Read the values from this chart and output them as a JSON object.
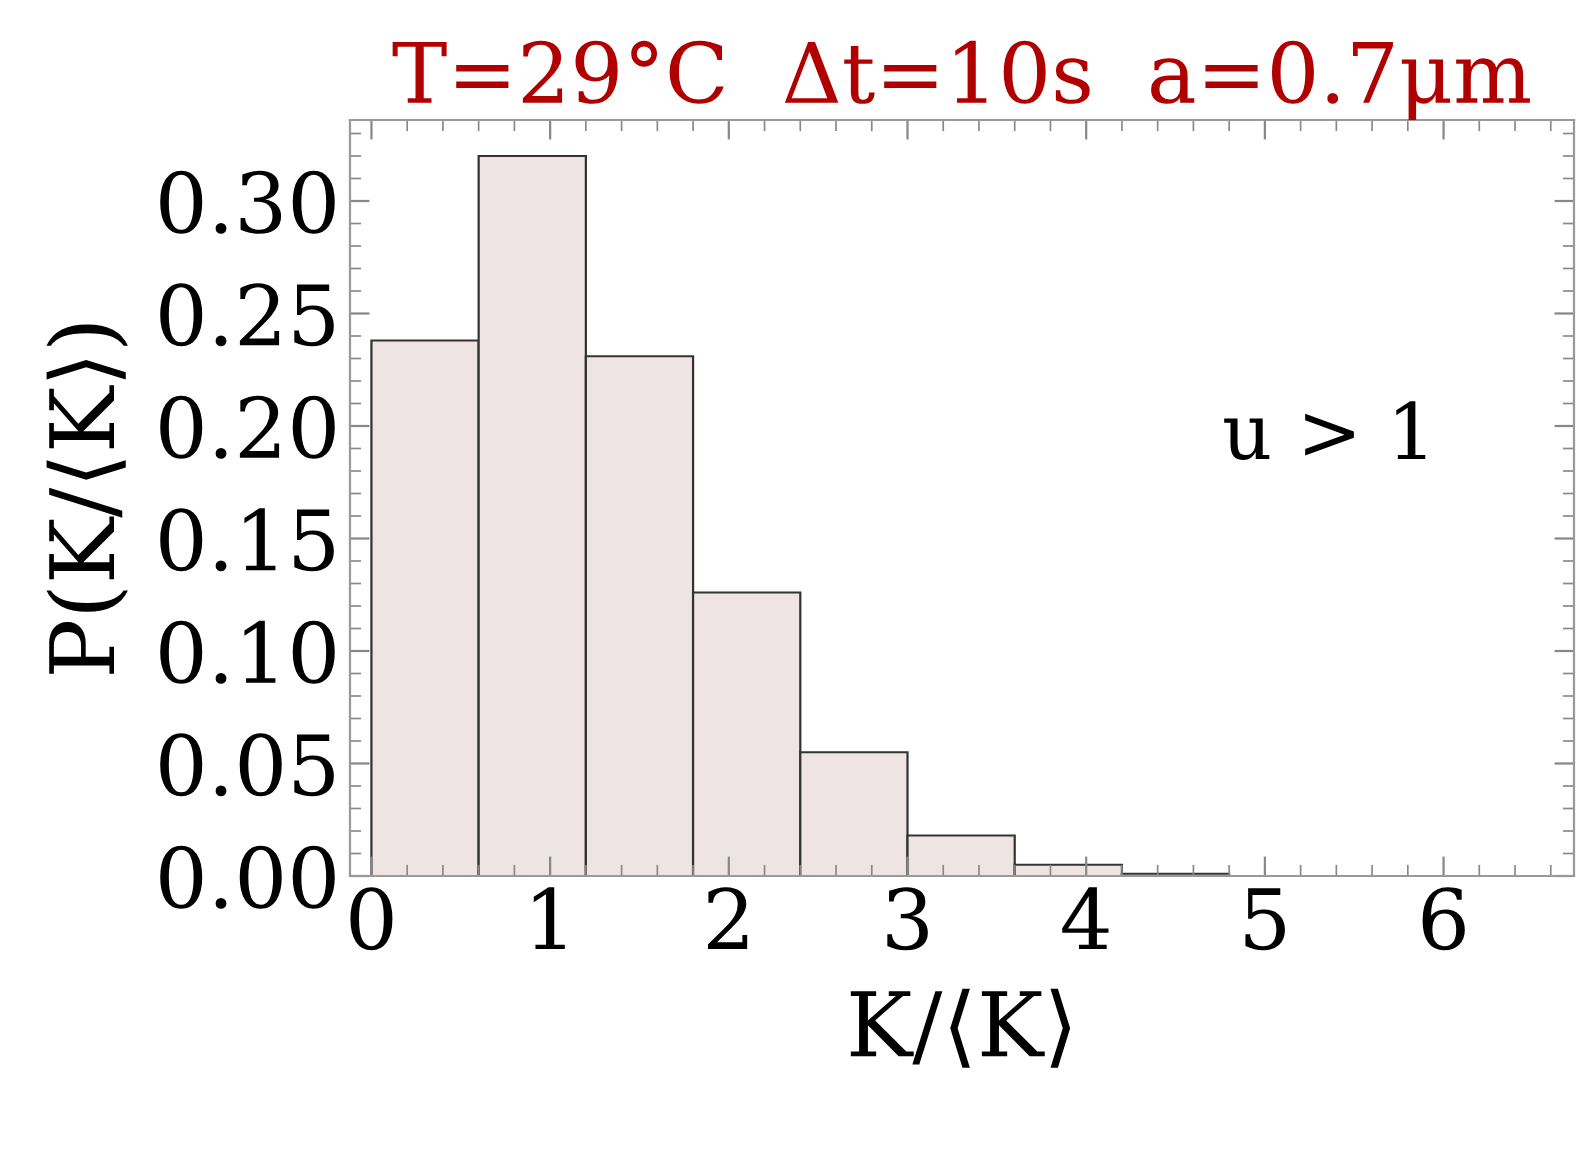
{
  "chart_data": {
    "type": "histogram",
    "title": "T=29°C  Δt=10s  a=0.7μm",
    "xlabel": "K/⟨K⟩",
    "ylabel": "P(K/⟨K⟩)",
    "annotations": [
      "u > 1"
    ],
    "bins": [
      0,
      0.6,
      1.2,
      1.8,
      2.4,
      3.0,
      3.6,
      4.2,
      4.8
    ],
    "values": [
      0.238,
      0.32,
      0.231,
      0.126,
      0.055,
      0.018,
      0.005,
      0.001
    ],
    "color": "#efe4e4",
    "xlim": [
      -0.12,
      6.73
    ],
    "ylim": [
      0,
      0.336
    ],
    "xticks": [
      0,
      1,
      2,
      3,
      4,
      5,
      6
    ],
    "yticks": [
      {
        "value": 0,
        "label": "0.00"
      },
      {
        "value": 0.05,
        "label": "0.05"
      },
      {
        "value": 0.1,
        "label": "0.10"
      },
      {
        "value": 0.15,
        "label": "0.15"
      },
      {
        "value": 0.2,
        "label": "0.20"
      },
      {
        "value": 0.25,
        "label": "0.25"
      },
      {
        "value": 0.3,
        "label": "0.30"
      }
    ],
    "grid": false
  }
}
